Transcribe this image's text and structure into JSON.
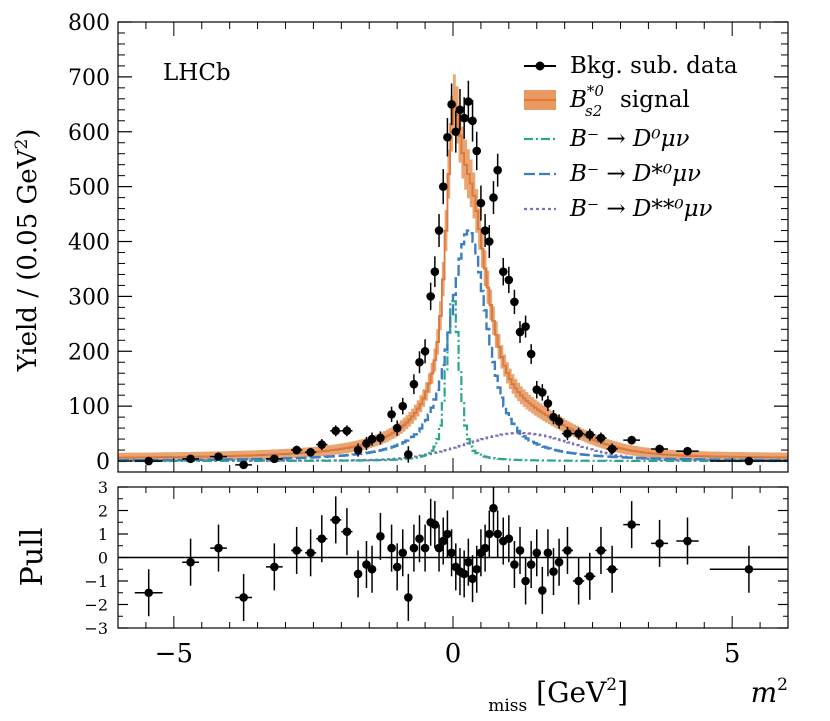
{
  "chart_data": [
    {
      "type": "histogram",
      "panel": "main",
      "ylabel_main": "Yield / (0.05 GeV",
      "ylabel_sup": "2",
      "ylabel_close": ")",
      "xlim": [
        -6,
        6
      ],
      "ylim": [
        -20,
        800
      ],
      "yticks": [
        "0",
        "100",
        "200",
        "300",
        "400",
        "500",
        "600",
        "700",
        "800"
      ],
      "annotation": "LHCb",
      "legend": {
        "placement": "top-right",
        "data_label": "Bkg. sub. data",
        "signal_label": "signal",
        "signal_math_base": "B",
        "signal_math_sup": "*0",
        "signal_math_sub": "s2",
        "d0_label": "B⁻ → D⁰μν",
        "dstar_label": "B⁻ → D*⁰μν",
        "dstarstar_label": "B⁻ → D**⁰μν"
      },
      "colors": {
        "data": "#000000",
        "signal_line": "#e8782f",
        "signal_band": "#e89a62",
        "d0": "#2ca58d",
        "dstar": "#3b7fc2",
        "dstarstar": "#7b6fb8",
        "total": "#3a70b0"
      },
      "data_points": [
        {
          "x": -5.45,
          "y": 0,
          "xerr": 0.25,
          "yerr": 6
        },
        {
          "x": -4.7,
          "y": 4,
          "xerr": 0.15,
          "yerr": 6
        },
        {
          "x": -4.2,
          "y": 8,
          "xerr": 0.15,
          "yerr": 6
        },
        {
          "x": -3.75,
          "y": -7,
          "xerr": 0.15,
          "yerr": 6
        },
        {
          "x": -3.2,
          "y": 4,
          "xerr": 0.15,
          "yerr": 6
        },
        {
          "x": -2.8,
          "y": 20,
          "xerr": 0.1,
          "yerr": 8
        },
        {
          "x": -2.55,
          "y": 16,
          "xerr": 0.1,
          "yerr": 8
        },
        {
          "x": -2.35,
          "y": 30,
          "xerr": 0.1,
          "yerr": 10
        },
        {
          "x": -2.1,
          "y": 55,
          "xerr": 0.1,
          "yerr": 10
        },
        {
          "x": -1.9,
          "y": 55,
          "xerr": 0.1,
          "yerr": 10
        },
        {
          "x": -1.7,
          "y": 20,
          "xerr": 0.05,
          "yerr": 12
        },
        {
          "x": -1.55,
          "y": 32,
          "xerr": 0.05,
          "yerr": 12
        },
        {
          "x": -1.45,
          "y": 40,
          "xerr": 0.05,
          "yerr": 12
        },
        {
          "x": -1.3,
          "y": 42,
          "xerr": 0.05,
          "yerr": 12
        },
        {
          "x": -1.1,
          "y": 85,
          "xerr": 0.05,
          "yerr": 14
        },
        {
          "x": -1.0,
          "y": 60,
          "xerr": 0.05,
          "yerr": 14
        },
        {
          "x": -0.9,
          "y": 100,
          "xerr": 0.05,
          "yerr": 15
        },
        {
          "x": -0.8,
          "y": 12,
          "xerr": 0.05,
          "yerr": 15
        },
        {
          "x": -0.7,
          "y": 140,
          "xerr": 0.05,
          "yerr": 18
        },
        {
          "x": -0.6,
          "y": 180,
          "xerr": 0.05,
          "yerr": 20
        },
        {
          "x": -0.5,
          "y": 200,
          "xerr": 0.05,
          "yerr": 22
        },
        {
          "x": -0.4,
          "y": 300,
          "xerr": 0.025,
          "yerr": 25
        },
        {
          "x": -0.325,
          "y": 345,
          "xerr": 0.025,
          "yerr": 28
        },
        {
          "x": -0.25,
          "y": 420,
          "xerr": 0.025,
          "yerr": 30
        },
        {
          "x": -0.175,
          "y": 500,
          "xerr": 0.025,
          "yerr": 32
        },
        {
          "x": -0.1,
          "y": 590,
          "xerr": 0.025,
          "yerr": 35
        },
        {
          "x": -0.025,
          "y": 650,
          "xerr": 0.025,
          "yerr": 38
        },
        {
          "x": 0.05,
          "y": 600,
          "xerr": 0.025,
          "yerr": 38
        },
        {
          "x": 0.125,
          "y": 640,
          "xerr": 0.025,
          "yerr": 38
        },
        {
          "x": 0.2,
          "y": 625,
          "xerr": 0.025,
          "yerr": 38
        },
        {
          "x": 0.275,
          "y": 655,
          "xerr": 0.025,
          "yerr": 38
        },
        {
          "x": 0.35,
          "y": 620,
          "xerr": 0.025,
          "yerr": 38
        },
        {
          "x": 0.425,
          "y": 565,
          "xerr": 0.025,
          "yerr": 35
        },
        {
          "x": 0.5,
          "y": 470,
          "xerr": 0.025,
          "yerr": 32
        },
        {
          "x": 0.575,
          "y": 420,
          "xerr": 0.025,
          "yerr": 30
        },
        {
          "x": 0.65,
          "y": 400,
          "xerr": 0.025,
          "yerr": 30
        },
        {
          "x": 0.725,
          "y": 480,
          "xerr": 0.025,
          "yerr": 30
        },
        {
          "x": 0.8,
          "y": 530,
          "xerr": 0.025,
          "yerr": 30
        },
        {
          "x": 0.9,
          "y": 345,
          "xerr": 0.05,
          "yerr": 25
        },
        {
          "x": 1.0,
          "y": 330,
          "xerr": 0.05,
          "yerr": 24
        },
        {
          "x": 1.1,
          "y": 290,
          "xerr": 0.05,
          "yerr": 22
        },
        {
          "x": 1.2,
          "y": 235,
          "xerr": 0.05,
          "yerr": 20
        },
        {
          "x": 1.3,
          "y": 245,
          "xerr": 0.05,
          "yerr": 20
        },
        {
          "x": 1.4,
          "y": 195,
          "xerr": 0.05,
          "yerr": 18
        },
        {
          "x": 1.5,
          "y": 130,
          "xerr": 0.05,
          "yerr": 16
        },
        {
          "x": 1.6,
          "y": 125,
          "xerr": 0.05,
          "yerr": 15
        },
        {
          "x": 1.7,
          "y": 105,
          "xerr": 0.05,
          "yerr": 14
        },
        {
          "x": 1.8,
          "y": 80,
          "xerr": 0.05,
          "yerr": 13
        },
        {
          "x": 1.9,
          "y": 72,
          "xerr": 0.05,
          "yerr": 13
        },
        {
          "x": 2.05,
          "y": 50,
          "xerr": 0.1,
          "yerr": 12
        },
        {
          "x": 2.25,
          "y": 50,
          "xerr": 0.1,
          "yerr": 11
        },
        {
          "x": 2.45,
          "y": 48,
          "xerr": 0.1,
          "yerr": 11
        },
        {
          "x": 2.65,
          "y": 42,
          "xerr": 0.1,
          "yerr": 10
        },
        {
          "x": 2.85,
          "y": 22,
          "xerr": 0.1,
          "yerr": 10
        },
        {
          "x": 3.2,
          "y": 38,
          "xerr": 0.15,
          "yerr": 8
        },
        {
          "x": 3.7,
          "y": 22,
          "xerr": 0.15,
          "yerr": 7
        },
        {
          "x": 4.2,
          "y": 18,
          "xerr": 0.2,
          "yerr": 7
        },
        {
          "x": 5.3,
          "y": 0,
          "xerr": 0.7,
          "yerr": 5
        }
      ]
    },
    {
      "type": "scatter",
      "panel": "pull",
      "ylabel": "Pull",
      "xlabel_base": "m",
      "xlabel_sup": "2",
      "xlabel_sub": "miss",
      "xlabel_unit_open": " [GeV",
      "xlabel_unit_sup": "2",
      "xlabel_unit_close": "]",
      "xlim": [
        -6,
        6
      ],
      "ylim": [
        -3,
        3
      ],
      "xticks": [
        "−5",
        "0",
        "5"
      ],
      "yticks": [
        "−3",
        "−2",
        "−1",
        "0",
        "1",
        "2",
        "3"
      ],
      "pulls": [
        -1.5,
        -0.2,
        0.4,
        -1.7,
        -0.4,
        0.3,
        0.2,
        0.8,
        1.6,
        1.1,
        -0.7,
        -0.3,
        -0.5,
        0.9,
        0.4,
        -0.4,
        0.2,
        -1.7,
        0.4,
        0.8,
        0.4,
        1.5,
        1.4,
        0.4,
        0.7,
        1.0,
        0.2,
        -0.4,
        -0.6,
        -0.7,
        -0.2,
        -0.9,
        -0.5,
        0.2,
        0.4,
        1.0,
        2.1,
        1.0,
        0.7,
        0.8,
        -0.3,
        0.3,
        -1.0,
        -0.3,
        0.2,
        -1.4,
        0.2,
        -0.6,
        -0.2,
        0.3,
        -1.0,
        -0.8,
        0.3,
        -0.5,
        1.4,
        0.6,
        0.7,
        -0.5
      ]
    }
  ]
}
